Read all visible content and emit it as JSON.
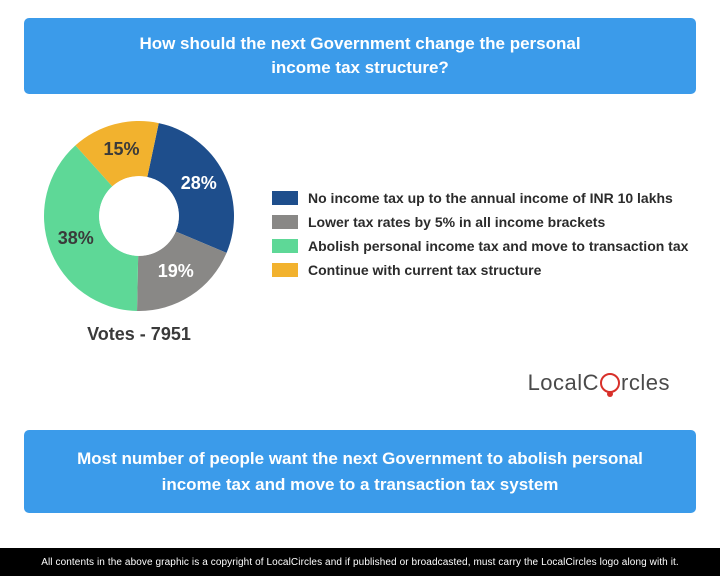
{
  "header": {
    "line1": "How should the next Government change the personal",
    "line2": "income tax structure?"
  },
  "chart": {
    "type": "donut",
    "background_color": "#ffffff",
    "inner_radius_ratio": 0.42,
    "label_fontsize": 18,
    "label_fontweight": "bold",
    "slices": [
      {
        "key": "no_tax_10l",
        "value": 28,
        "label": "28%",
        "color": "#1e4e8c",
        "label_color": "#ffffff"
      },
      {
        "key": "lower_5pct",
        "value": 19,
        "label": "19%",
        "color": "#898886",
        "label_color": "#ffffff"
      },
      {
        "key": "abolish_move",
        "value": 38,
        "label": "38%",
        "color": "#5ed897",
        "label_color": "#3a3a3a"
      },
      {
        "key": "continue",
        "value": 15,
        "label": "15%",
        "color": "#f2b22e",
        "label_color": "#3a3a3a"
      }
    ],
    "votes_label": "Votes - 7951"
  },
  "legend": {
    "items": [
      {
        "color": "#1e4e8c",
        "text": "No income tax up to the annual income of INR 10 lakhs"
      },
      {
        "color": "#898886",
        "text": "Lower tax rates by 5% in all income brackets"
      },
      {
        "color": "#5ed897",
        "text": "Abolish personal income tax and move to transaction tax"
      },
      {
        "color": "#f2b22e",
        "text": "Continue with current tax structure"
      }
    ],
    "fontsize": 14,
    "text_color": "#2b2b2b"
  },
  "brand": {
    "prefix": "LocalC",
    "suffix": "rcles",
    "text_color": "#4a4a4a",
    "accent_color": "#d8302a"
  },
  "summary": {
    "line1": "Most number of people want the next Government to abolish personal",
    "line2": "income tax and move to a transaction tax system"
  },
  "footer": {
    "text": "All contents in the above graphic is a copyright of LocalCircles and if published or broadcasted, must carry the LocalCircles logo along with it."
  },
  "boxes": {
    "bg": "#3b9bea",
    "text_color": "#ffffff",
    "radius": 5,
    "fontsize": 17
  }
}
